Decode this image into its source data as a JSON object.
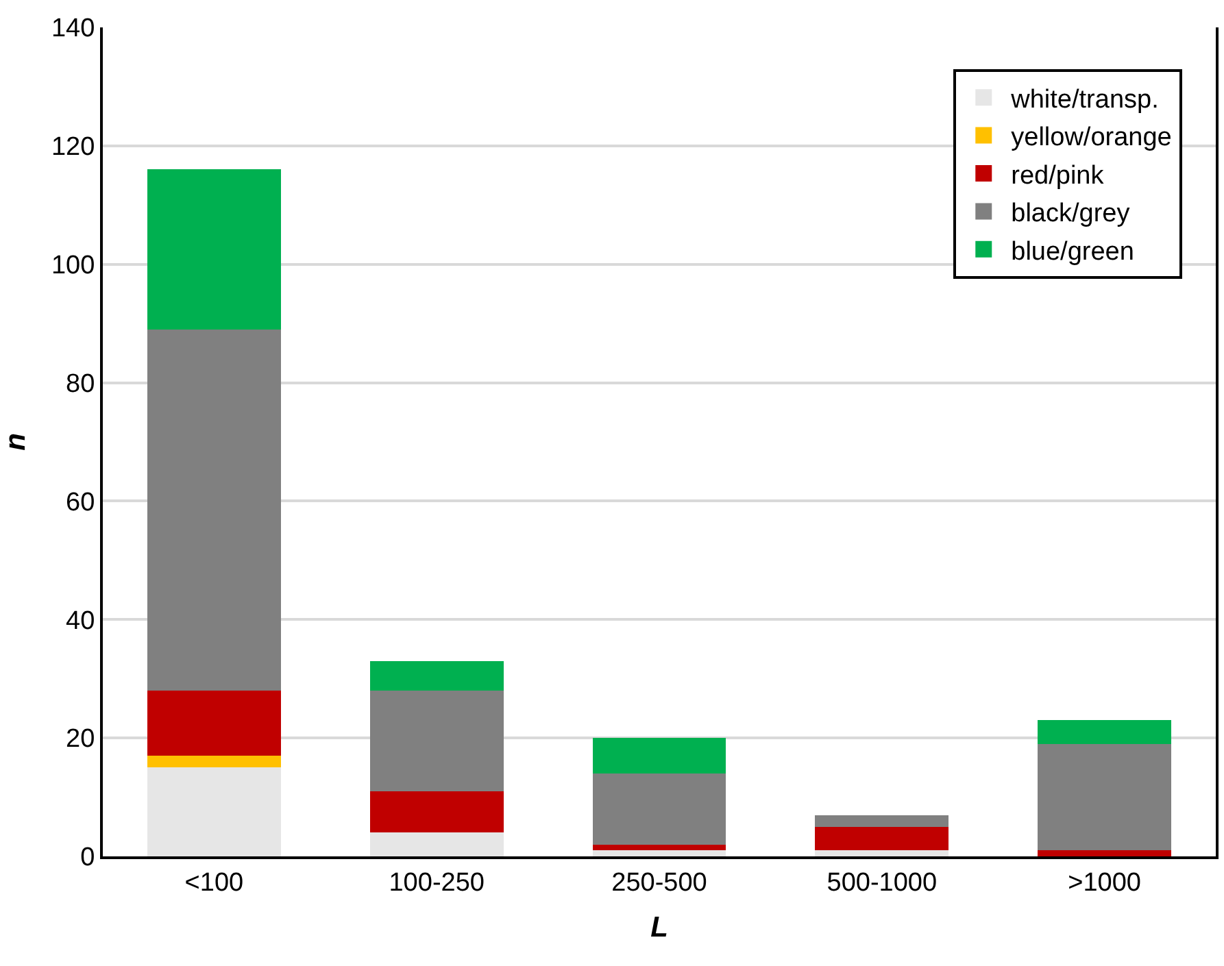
{
  "chart_data": {
    "type": "bar",
    "stacked": true,
    "xlabel": "L",
    "ylabel": "n",
    "categories": [
      "<100",
      "100-250",
      "250-500",
      "500-1000",
      ">1000"
    ],
    "series": [
      {
        "name": "white/transp.",
        "color": "#e6e6e6",
        "values": [
          15,
          4,
          1,
          1,
          0
        ]
      },
      {
        "name": "yellow/orange",
        "color": "#ffc000",
        "values": [
          2,
          0,
          0,
          0,
          0
        ]
      },
      {
        "name": "red/pink",
        "color": "#c00000",
        "values": [
          11,
          7,
          1,
          4,
          1
        ]
      },
      {
        "name": "black/grey",
        "color": "#808080",
        "values": [
          61,
          17,
          12,
          2,
          18
        ]
      },
      {
        "name": "blue/green",
        "color": "#00b050",
        "values": [
          27,
          5,
          6,
          0,
          4
        ]
      }
    ],
    "ylim": [
      0,
      140
    ],
    "yticks": [
      0,
      20,
      40,
      60,
      80,
      100,
      120,
      140
    ],
    "grid": "y",
    "legend": "top right"
  }
}
